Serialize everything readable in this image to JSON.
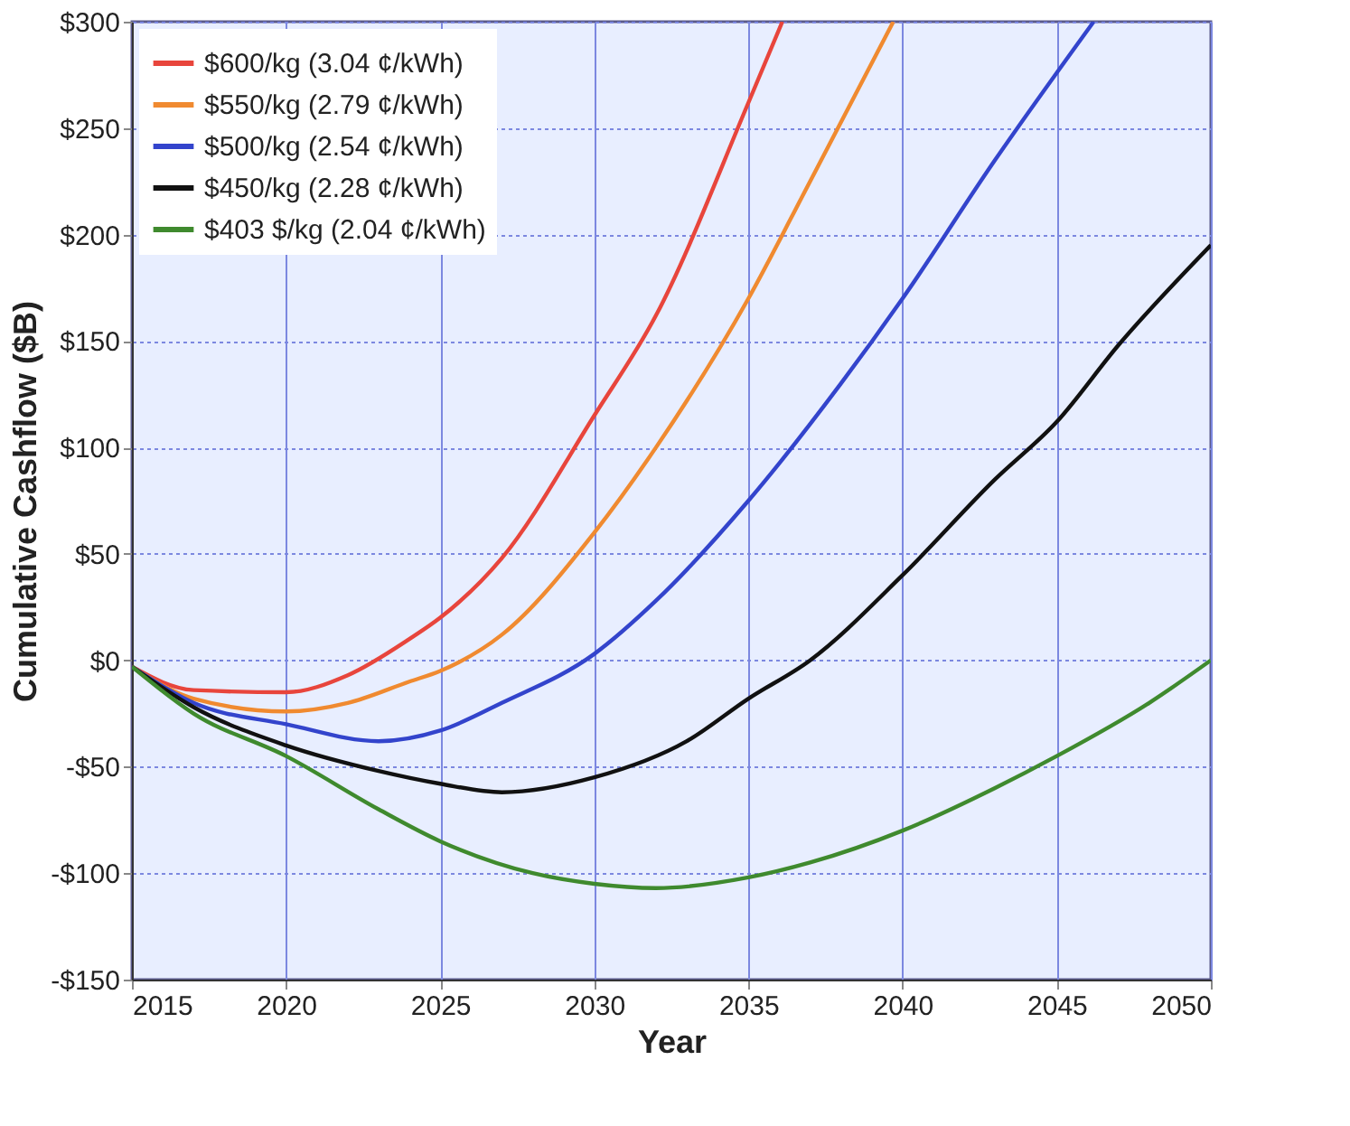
{
  "chart_data": {
    "type": "line",
    "xlabel": "Year",
    "ylabel": "Cumulative Cashflow ($B)",
    "xlim": [
      2015,
      2050
    ],
    "xticks": [
      2015,
      2020,
      2025,
      2030,
      2035,
      2040,
      2045,
      2050
    ],
    "ylim": [
      -150,
      300
    ],
    "yticks": [
      {
        "value": -150,
        "label": "-$150"
      },
      {
        "value": -100,
        "label": "-$100"
      },
      {
        "value": -50,
        "label": "-$50"
      },
      {
        "value": 0,
        "label": "$0"
      },
      {
        "value": 50,
        "label": "$50"
      },
      {
        "value": 100,
        "label": "$100"
      },
      {
        "value": 150,
        "label": "$150"
      },
      {
        "value": 200,
        "label": "$200"
      },
      {
        "value": 250,
        "label": "$250"
      },
      {
        "value": 300,
        "label": "$300"
      }
    ],
    "grid": true,
    "legend": "top left",
    "line_style": "solid",
    "marker": "none",
    "series": [
      {
        "name": "$600/kg (3.04 ¢/kWh)",
        "color": "#e8453c",
        "x": [
          2015,
          2017,
          2020,
          2022,
          2024,
          2025,
          2027,
          2030,
          2032,
          2035,
          2036.1
        ],
        "values": [
          -3,
          -14,
          -15,
          -7,
          10,
          20,
          48,
          115,
          162,
          262,
          300
        ]
      },
      {
        "name": "$550/kg (2.79 ¢/kWh)",
        "color": "#f08a30",
        "x": [
          2015,
          2017,
          2020,
          2022,
          2024,
          2025,
          2027,
          2030,
          2032,
          2035,
          2037,
          2039.7
        ],
        "values": [
          -3,
          -18,
          -24,
          -20,
          -10,
          -5,
          12,
          60,
          100,
          170,
          225,
          300
        ]
      },
      {
        "name": "$500/kg (2.54 ¢/kWh)",
        "color": "#3344cc",
        "x": [
          2015,
          2017,
          2020,
          2023,
          2025,
          2027,
          2030,
          2032,
          2035,
          2038,
          2040,
          2043,
          2046.2
        ],
        "values": [
          -3,
          -20,
          -30,
          -38,
          -33,
          -20,
          3,
          28,
          75,
          130,
          170,
          235,
          300
        ]
      },
      {
        "name": "$450/kg (2.28 ¢/kWh)",
        "color": "#111111",
        "x": [
          2015,
          2017,
          2020,
          2023,
          2025,
          2027,
          2030,
          2033,
          2035,
          2037,
          2040,
          2043,
          2045,
          2047,
          2050
        ],
        "values": [
          -3,
          -22,
          -40,
          -52,
          -58,
          -62,
          -55,
          -38,
          -18,
          0,
          40,
          85,
          112,
          148,
          195
        ]
      },
      {
        "name": "$403 $/kg (2.04 ¢/kWh)",
        "color": "#3f8a2e",
        "x": [
          2015,
          2017,
          2020,
          2023,
          2025,
          2028,
          2030,
          2032,
          2035,
          2037,
          2040,
          2043,
          2045,
          2048,
          2050
        ],
        "values": [
          -3,
          -25,
          -45,
          -70,
          -85,
          -100,
          -105,
          -107,
          -102,
          -95,
          -80,
          -60,
          -45,
          -20,
          0
        ]
      }
    ]
  }
}
